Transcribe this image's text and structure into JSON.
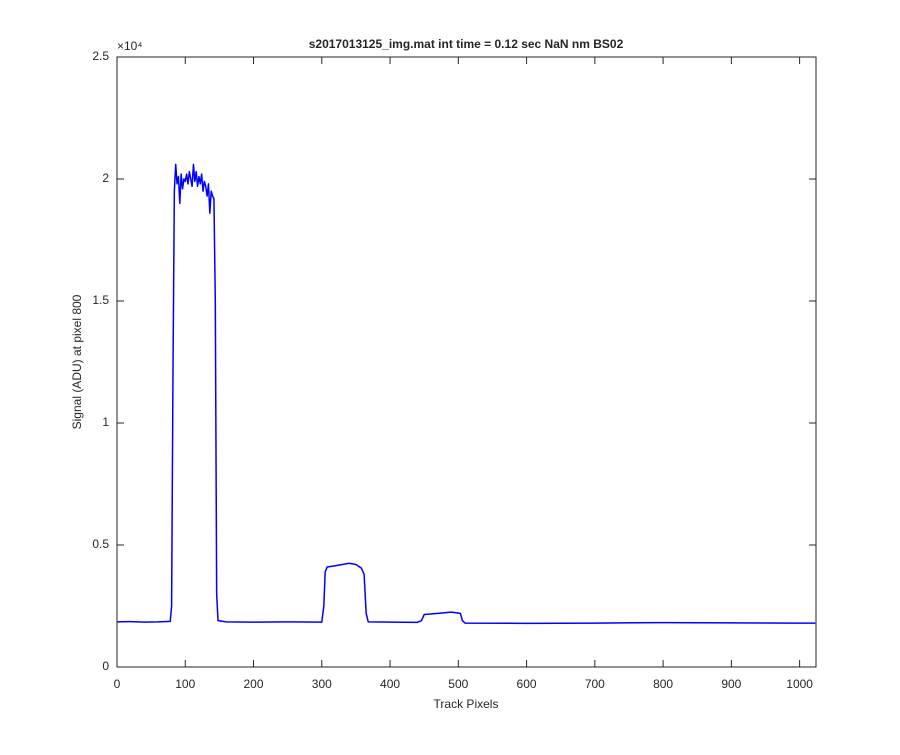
{
  "chart_data": {
    "type": "line",
    "title": "s2017013125_img.mat int time = 0.12 sec  NaN nm BS02",
    "xlabel": "Track Pixels",
    "ylabel": "Signal (ADU) at pixel 800",
    "y_exponent": "×10⁴",
    "xlim": [
      0,
      1024
    ],
    "ylim": [
      0,
      25000
    ],
    "xticks": [
      0,
      100,
      200,
      300,
      400,
      500,
      600,
      700,
      800,
      900,
      1000
    ],
    "yticks": [
      0,
      {
        "value": 5000,
        "label": "0.5"
      },
      {
        "value": 10000,
        "label": "1"
      },
      {
        "value": 15000,
        "label": "1.5"
      },
      {
        "value": 20000,
        "label": "2"
      },
      {
        "value": 25000,
        "label": "2.5"
      }
    ],
    "x": [
      0,
      20,
      40,
      60,
      78,
      80,
      82,
      84,
      86,
      88,
      90,
      92,
      94,
      96,
      98,
      100,
      102,
      104,
      106,
      108,
      110,
      112,
      114,
      116,
      118,
      120,
      122,
      124,
      126,
      128,
      130,
      132,
      134,
      136,
      138,
      140,
      142,
      144,
      146,
      148,
      160,
      200,
      250,
      300,
      303,
      305,
      308,
      320,
      330,
      340,
      350,
      358,
      362,
      365,
      368,
      400,
      440,
      446,
      450,
      470,
      490,
      503,
      506,
      510,
      600,
      700,
      800,
      900,
      1000,
      1023
    ],
    "series": [
      {
        "color": "#0000ff",
        "values": [
          1850,
          1860,
          1840,
          1850,
          1870,
          2500,
          12000,
          19500,
          20600,
          19800,
          20100,
          19000,
          20200,
          19600,
          20000,
          19900,
          20200,
          19800,
          20300,
          20000,
          19700,
          20600,
          19900,
          20300,
          19700,
          20100,
          19800,
          20200,
          19500,
          19900,
          19700,
          19300,
          19800,
          18600,
          19500,
          19300,
          19200,
          15000,
          3000,
          1900,
          1850,
          1840,
          1850,
          1840,
          2500,
          3900,
          4100,
          4150,
          4200,
          4250,
          4200,
          4050,
          3800,
          2200,
          1850,
          1840,
          1830,
          1900,
          2150,
          2200,
          2250,
          2200,
          1900,
          1800,
          1790,
          1800,
          1820,
          1810,
          1800,
          1800
        ]
      }
    ]
  }
}
